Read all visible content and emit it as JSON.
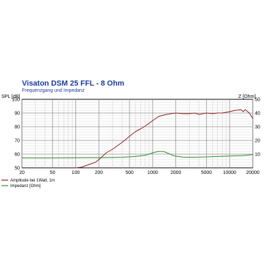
{
  "chart_data": {
    "type": "line",
    "title": "Visaton DSM 25 FFL - 8 Ohm",
    "subtitle": "Frequenzgang und Impedanz",
    "ylabel_left": "SPL [dB]",
    "ylabel_right": "Z [Ohm]",
    "x_scale": "log",
    "xlim": [
      20,
      20000
    ],
    "ylim_left": [
      50,
      100
    ],
    "ylim_right": [
      0,
      50
    ],
    "x_ticks": [
      20,
      50,
      100,
      200,
      500,
      1000,
      2000,
      5000,
      10000,
      20000
    ],
    "x_tick_labels": [
      "20",
      "50",
      "100",
      "200",
      "500",
      "1000",
      "2000",
      "5000",
      "10000",
      "20000"
    ],
    "y_ticks_left": [
      50,
      60,
      70,
      80,
      90,
      100
    ],
    "y_ticks_right": [
      10,
      20,
      30,
      40,
      50
    ],
    "grid": true,
    "legend_position": "bottom-left",
    "series": [
      {
        "name": "Amplitude bei 1Watt, 1m",
        "axis": "left",
        "color": "#8b1a1a",
        "x": [
          100,
          120,
          150,
          180,
          200,
          250,
          300,
          400,
          500,
          600,
          700,
          800,
          900,
          1000,
          1200,
          1500,
          2000,
          2500,
          3000,
          3500,
          4000,
          5000,
          6000,
          7000,
          8000,
          10000,
          12000,
          14000,
          15000,
          16000,
          18000,
          20000
        ],
        "values": [
          50,
          50.5,
          52.5,
          54,
          56,
          61,
          63.5,
          68.5,
          73,
          76.5,
          78.5,
          80.5,
          82.5,
          84.5,
          87.5,
          89,
          90,
          89.5,
          89.5,
          90,
          89,
          90,
          89.5,
          90,
          90,
          91,
          92,
          92.5,
          91,
          92.5,
          90,
          86
        ]
      },
      {
        "name": "Impedanz [Ohm]",
        "axis": "right",
        "color": "#2d8a2d",
        "x": [
          20,
          50,
          100,
          200,
          300,
          400,
          500,
          600,
          700,
          800,
          900,
          1000,
          1100,
          1200,
          1400,
          1600,
          1800,
          2000,
          2500,
          3000,
          4000,
          5000,
          7000,
          10000,
          15000,
          20000
        ],
        "values": [
          7.2,
          7.2,
          7.3,
          7.4,
          7.5,
          7.7,
          8.0,
          8.4,
          8.8,
          9.2,
          10.0,
          11.0,
          11.5,
          12.0,
          11.8,
          10.5,
          9.2,
          8.5,
          7.8,
          7.7,
          7.8,
          8.0,
          8.3,
          8.6,
          9.0,
          9.6
        ]
      }
    ]
  }
}
